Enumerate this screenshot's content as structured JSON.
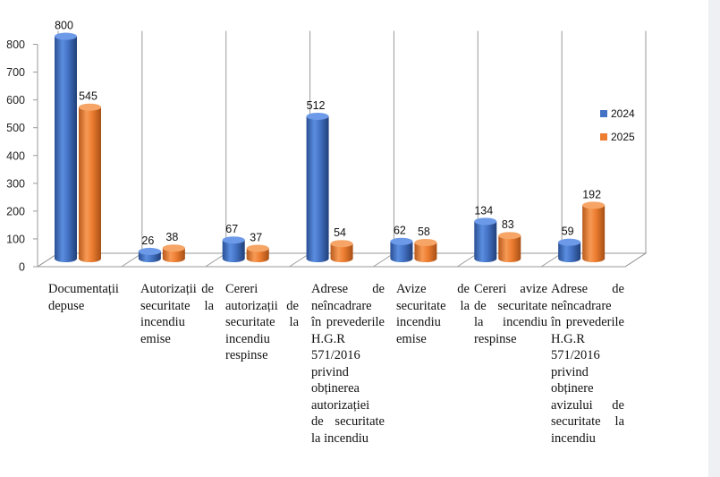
{
  "chart_data": {
    "type": "bar",
    "title": "",
    "xlabel": "",
    "ylabel": "",
    "ylim": [
      0,
      800
    ],
    "yticks": [
      0,
      100,
      200,
      300,
      400,
      500,
      600,
      700,
      800
    ],
    "categories": [
      "Documentații depuse",
      "Autorizații de securitate la incendiu emise",
      "Cereri autorizații de securitate la incendiu respinse",
      "Adrese de neîncadrare în prevederile H.G.R 571/2016 privind obținerea autorizației de securitate la incendiu",
      "Avize de securitate la incendiu emise",
      "Cereri avize de securitate la incendiu respinse",
      "Adrese de neîncadrare în prevederile H.G.R 571/2016 privind obținere avizului de securitate la incendiu"
    ],
    "series": [
      {
        "name": "2024",
        "color": "#4472C4",
        "values": [
          800,
          26,
          67,
          512,
          62,
          134,
          59
        ]
      },
      {
        "name": "2025",
        "color": "#ED7D31",
        "values": [
          545,
          38,
          37,
          54,
          58,
          83,
          192
        ]
      }
    ],
    "legend": "right",
    "grid": false
  }
}
